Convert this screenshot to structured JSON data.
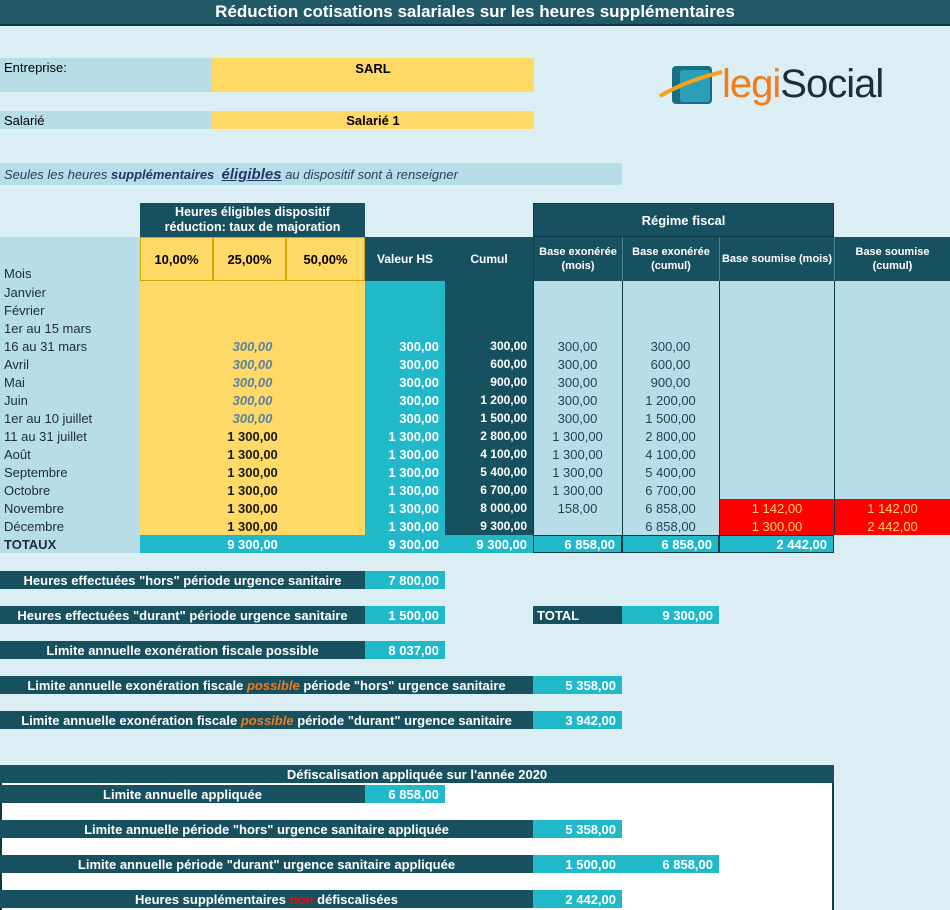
{
  "title": "Réduction cotisations salariales sur les heures supplémentaires",
  "entreprise": {
    "label": "Entreprise:",
    "value": "SARL"
  },
  "salarie": {
    "label": "Salarié",
    "value": "Salarié 1"
  },
  "note": {
    "prefix": "Seules les heures",
    "bold": "supplémentaires",
    "emph": "éligibles",
    "suffix": "au dispositif sont à renseigner"
  },
  "logo": {
    "part1": "legi",
    "part2": "Social"
  },
  "headers": {
    "eligible": "Heures éligibles dispositif réduction: taux de majoration",
    "rates": [
      "10,00%",
      "25,00%",
      "50,00%"
    ],
    "valeur_hs": "Valeur HS",
    "cumul": "Cumul",
    "regime": "Régime fiscal",
    "base_exo_mois": "Base exonérée (mois)",
    "base_exo_cumul": "Base exonérée (cumul)",
    "base_soumise_mois": "Base soumise (mois)",
    "base_soumise_cumul": "Base soumise (cumul)",
    "mois": "Mois"
  },
  "rows": [
    {
      "label": "Janvier",
      "maj": "",
      "maj_style": "",
      "valeur": "",
      "cumul": "",
      "exo_mois": "",
      "exo_cumul": "",
      "sou_mois": "",
      "sou_cumul": ""
    },
    {
      "label": "Février",
      "maj": "",
      "maj_style": "",
      "valeur": "",
      "cumul": "",
      "exo_mois": "",
      "exo_cumul": "",
      "sou_mois": "",
      "sou_cumul": ""
    },
    {
      "label": "1er au 15 mars",
      "maj": "",
      "maj_style": "",
      "valeur": "",
      "cumul": "",
      "exo_mois": "",
      "exo_cumul": "",
      "sou_mois": "",
      "sou_cumul": ""
    },
    {
      "label": "16 au 31 mars",
      "maj": "300,00",
      "maj_style": "it",
      "valeur": "300,00",
      "cumul": "300,00",
      "exo_mois": "300,00",
      "exo_cumul": "300,00",
      "sou_mois": "",
      "sou_cumul": ""
    },
    {
      "label": "Avril",
      "maj": "300,00",
      "maj_style": "it",
      "valeur": "300,00",
      "cumul": "600,00",
      "exo_mois": "300,00",
      "exo_cumul": "600,00",
      "sou_mois": "",
      "sou_cumul": ""
    },
    {
      "label": "Mai",
      "maj": "300,00",
      "maj_style": "it",
      "valeur": "300,00",
      "cumul": "900,00",
      "exo_mois": "300,00",
      "exo_cumul": "900,00",
      "sou_mois": "",
      "sou_cumul": ""
    },
    {
      "label": "Juin",
      "maj": "300,00",
      "maj_style": "it",
      "valeur": "300,00",
      "cumul": "1 200,00",
      "exo_mois": "300,00",
      "exo_cumul": "1 200,00",
      "sou_mois": "",
      "sou_cumul": ""
    },
    {
      "label": "1er au 10 juillet",
      "maj": "300,00",
      "maj_style": "it",
      "valeur": "300,00",
      "cumul": "1 500,00",
      "exo_mois": "300,00",
      "exo_cumul": "1 500,00",
      "sou_mois": "",
      "sou_cumul": ""
    },
    {
      "label": "11 au 31 juillet",
      "maj": "1 300,00",
      "maj_style": "bold",
      "valeur": "1 300,00",
      "cumul": "2 800,00",
      "exo_mois": "1 300,00",
      "exo_cumul": "2 800,00",
      "sou_mois": "",
      "sou_cumul": ""
    },
    {
      "label": "Août",
      "maj": "1 300,00",
      "maj_style": "bold",
      "valeur": "1 300,00",
      "cumul": "4 100,00",
      "exo_mois": "1 300,00",
      "exo_cumul": "4 100,00",
      "sou_mois": "",
      "sou_cumul": ""
    },
    {
      "label": "Septembre",
      "maj": "1 300,00",
      "maj_style": "bold",
      "valeur": "1 300,00",
      "cumul": "5 400,00",
      "exo_mois": "1 300,00",
      "exo_cumul": "5 400,00",
      "sou_mois": "",
      "sou_cumul": ""
    },
    {
      "label": "Octobre",
      "maj": "1 300,00",
      "maj_style": "bold",
      "valeur": "1 300,00",
      "cumul": "6 700,00",
      "exo_mois": "1 300,00",
      "exo_cumul": "6 700,00",
      "sou_mois": "",
      "sou_cumul": ""
    },
    {
      "label": "Novembre",
      "maj": "1 300,00",
      "maj_style": "bold",
      "valeur": "1 300,00",
      "cumul": "8 000,00",
      "exo_mois": "158,00",
      "exo_cumul": "6 858,00",
      "sou_mois": "1 142,00",
      "sou_cumul": "1 142,00"
    },
    {
      "label": "Décembre",
      "maj": "1 300,00",
      "maj_style": "bold",
      "valeur": "1 300,00",
      "cumul": "9 300,00",
      "exo_mois": "",
      "exo_cumul": "6 858,00",
      "sou_mois": "1 300,00",
      "sou_cumul": "2 442,00"
    }
  ],
  "totaux": {
    "label": "TOTAUX",
    "maj": "9 300,00",
    "valeur": "9 300,00",
    "cumul": "9 300,00",
    "exo_mois": "6 858,00",
    "exo_cumul": "6 858,00",
    "sou": "2 442,00"
  },
  "summary": {
    "hors": {
      "label": "Heures effectuées \"hors\" période urgence sanitaire",
      "value": "7 800,00"
    },
    "durant": {
      "label": "Heures effectuées \"durant\" période urgence sanitaire",
      "value": "1 500,00"
    },
    "total": {
      "label": "TOTAL",
      "value": "9 300,00"
    },
    "limite": {
      "label": "Limite annuelle exonération fiscale possible",
      "value": "8 037,00"
    },
    "limite_hors": {
      "pre": "Limite annuelle exonération fiscale",
      "emph": "possible",
      "post": "période \"hors\" urgence sanitaire",
      "value": "5 358,00"
    },
    "limite_durant": {
      "pre": "Limite annuelle exonération fiscale",
      "emph": "possible",
      "post": "période \"durant\" urgence sanitaire",
      "value": "3 942,00"
    }
  },
  "defisc": {
    "title": "Défiscalisation appliquée sur l'année 2020",
    "appliquee": {
      "label": "Limite annuelle appliquée",
      "value": "6 858,00"
    },
    "hors": {
      "label": "Limite annuelle période \"hors\" urgence sanitaire appliquée",
      "value": "5 358,00"
    },
    "durant": {
      "label": "Limite annuelle période \"durant\" urgence sanitaire appliquée",
      "value": "1 500,00",
      "value2": "6 858,00"
    },
    "non": {
      "pre": "Heures supplémentaires",
      "emph": "non",
      "post": "défiscalisées",
      "value": "2 442,00"
    }
  },
  "colors": {
    "dark": "#215967",
    "cyan": "#1fb9c9",
    "yellow": "#ffd966",
    "light": "#b7dee8",
    "red": "#ff0000",
    "orange": "#f07c1a"
  }
}
